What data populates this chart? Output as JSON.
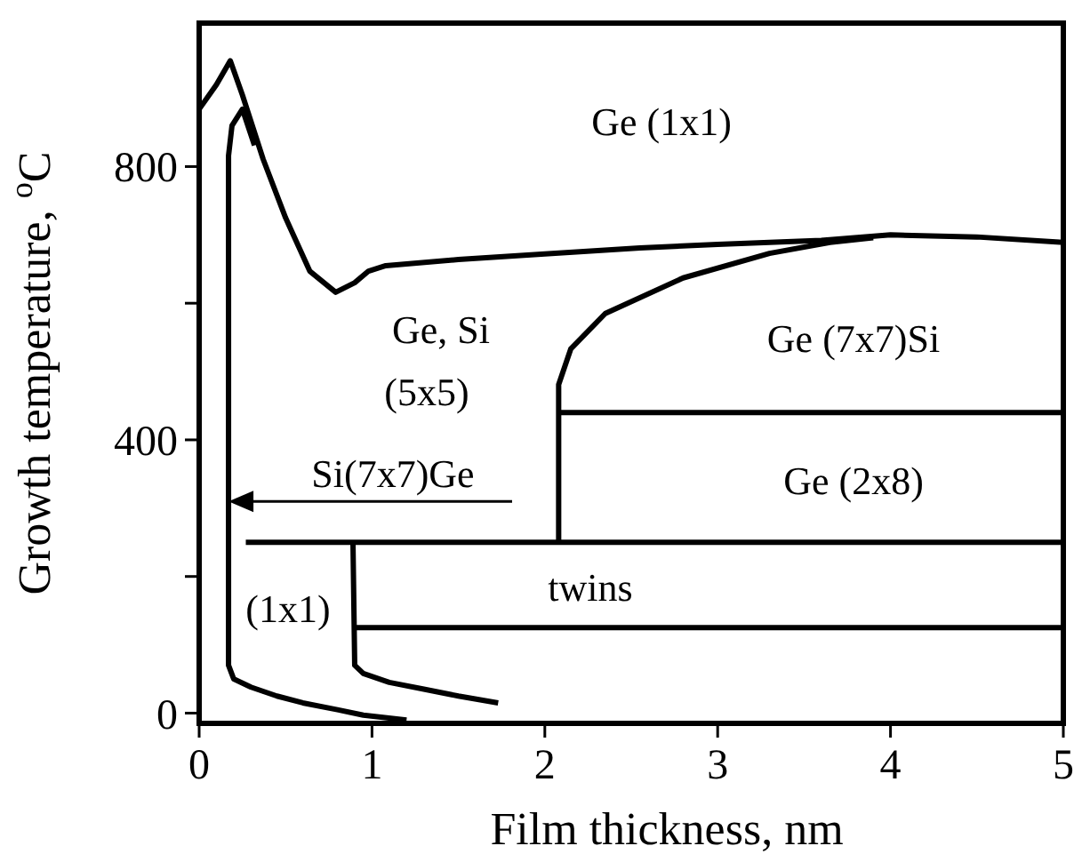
{
  "chart_data": {
    "type": "line",
    "xlabel": "Film thickness, nm",
    "ylabel": "Growth temperature, $^{o}$C",
    "xlim": [
      0,
      5
    ],
    "ylim": [
      -15,
      1010
    ],
    "xticks": [
      0,
      1,
      2,
      3,
      4,
      5
    ],
    "yticks": [
      0,
      {
        "value": 200,
        "label": null
      },
      400,
      {
        "value": 600,
        "label": null
      },
      800
    ],
    "grid": false,
    "marker": "none",
    "line_style": "solid",
    "series": [
      {
        "color": "#000000",
        "x": [
          0,
          0.1,
          0.18,
          0.25,
          0.37,
          0.5,
          0.64,
          0.79,
          0.9,
          0.98,
          1.08,
          1.5,
          2.0,
          2.55,
          3.0,
          3.6,
          4.0,
          4.5,
          5.0
        ],
        "values": [
          884,
          920,
          955,
          905,
          811,
          725,
          647,
          616,
          630,
          647,
          655,
          664,
          672,
          681,
          686,
          692,
          700,
          697,
          689
        ]
      },
      {
        "color": "#000000",
        "x": [
          0.32,
          0.25,
          0.19,
          0.17,
          0.17,
          0.2,
          0.3,
          0.45,
          0.6,
          0.8,
          0.95,
          1.2
        ],
        "values": [
          831,
          884,
          860,
          816,
          70,
          50,
          38,
          25,
          15,
          5,
          -3,
          -10
        ]
      },
      {
        "color": "#000000",
        "x": [
          0.89,
          0.9,
          0.95,
          1.1,
          1.3,
          1.5,
          1.73
        ],
        "values": [
          250,
          70,
          58,
          45,
          35,
          25,
          15
        ]
      },
      {
        "color": "#000000",
        "x": [
          0.27,
          5
        ],
        "values": [
          250,
          250
        ]
      },
      {
        "color": "#000000",
        "x": [
          0.9,
          5
        ],
        "values": [
          125,
          125
        ]
      },
      {
        "color": "#000000",
        "x": [
          2.08,
          5
        ],
        "values": [
          440,
          440
        ]
      },
      {
        "color": "#000000",
        "x": [
          2.08,
          2.08,
          2.15,
          2.35,
          2.8,
          3.3,
          3.65,
          3.9
        ],
        "values": [
          250,
          481,
          533,
          585,
          637,
          673,
          689,
          696
        ]
      }
    ],
    "annotations": [
      "Ge (1x1)",
      "Ge, Si",
      "(5x5)",
      "Ge (7x7)Si",
      "Ge (2x8)",
      "twins",
      "(1x1)",
      {
        "text": "Si(7x7)Ge",
        "x": 0.17,
        "y": 310
      }
    ]
  }
}
